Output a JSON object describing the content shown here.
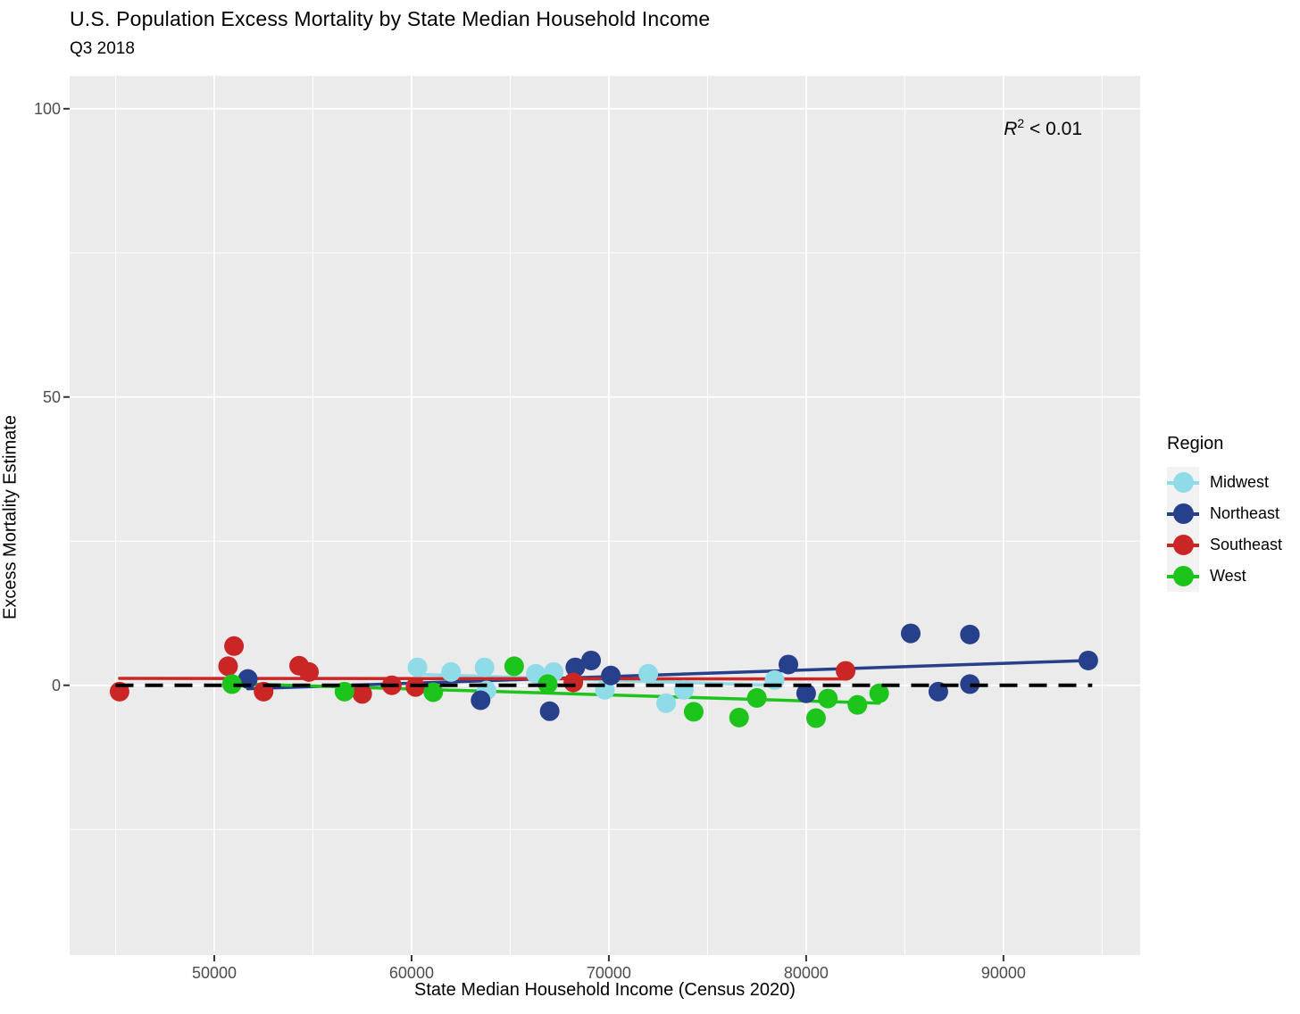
{
  "chart": {
    "title": "U.S. Population Excess Mortality by State Median Household Income",
    "subtitle": "Q3 2018",
    "xlabel": "State Median Household Income (Census 2020)",
    "ylabel": "Excess Mortality Estimate",
    "annotation": {
      "r": "R",
      "exponent": "2",
      "comparison": " < 0.01"
    }
  },
  "legend": {
    "title": "Region",
    "entries": [
      {
        "label": "Midwest",
        "color": "#8FDCE8"
      },
      {
        "label": "Northeast",
        "color": "#27408B"
      },
      {
        "label": "Southeast",
        "color": "#CB2626"
      },
      {
        "label": "West",
        "color": "#1CC41C"
      }
    ]
  },
  "chart_data": {
    "type": "scatter",
    "title": "U.S. Population Excess Mortality by State Median Household Income",
    "subtitle": "Q3 2018",
    "xlabel": "State Median Household Income (Census 2020)",
    "ylabel": "Excess Mortality Estimate",
    "xlim": [
      42670,
      96930
    ],
    "ylim": [
      -46.8,
      105.7
    ],
    "x_major_ticks": [
      {
        "v": 50000,
        "label": "50000"
      },
      {
        "v": 60000,
        "label": "60000"
      },
      {
        "v": 70000,
        "label": "70000"
      },
      {
        "v": 80000,
        "label": "80000"
      },
      {
        "v": 90000,
        "label": "90000"
      }
    ],
    "x_minor_ticks": [
      45000,
      55000,
      65000,
      75000,
      85000,
      95000
    ],
    "y_major_ticks": [
      {
        "v": 0,
        "label": "0"
      },
      {
        "v": 50,
        "label": "50"
      },
      {
        "v": 100,
        "label": "100"
      }
    ],
    "y_minor_ticks": [
      -25,
      25,
      75
    ],
    "grid": true,
    "legend_position": "right",
    "panel_color": "#EBEBEB",
    "grid_color": "#FFFFFF",
    "reference_line": {
      "y": 0,
      "x_start": 45000,
      "x_end": 94500,
      "color": "#000000",
      "style": "dashed"
    },
    "annotation_text": "R2 < 0.01",
    "series": [
      {
        "name": "Midwest",
        "color": "#8FDCE8",
        "points": [
          [
            60300,
            3.1
          ],
          [
            62000,
            2.3
          ],
          [
            63700,
            3.1
          ],
          [
            63800,
            -0.9
          ],
          [
            66300,
            2.0
          ],
          [
            67200,
            2.3
          ],
          [
            69800,
            -0.8
          ],
          [
            72000,
            2.0
          ],
          [
            72900,
            -3.1
          ],
          [
            73800,
            -0.8
          ],
          [
            78400,
            0.9
          ]
        ],
        "trend": {
          "x1": 60300,
          "y1": 1.9,
          "x2": 78400,
          "y2": 0.0
        }
      },
      {
        "name": "Northeast",
        "color": "#27408B",
        "points": [
          [
            51700,
            1.1
          ],
          [
            63500,
            -2.6
          ],
          [
            67000,
            -4.5
          ],
          [
            68300,
            3.1
          ],
          [
            69100,
            4.3
          ],
          [
            70100,
            1.7
          ],
          [
            79100,
            3.6
          ],
          [
            80000,
            -1.4
          ],
          [
            85300,
            9.0
          ],
          [
            86700,
            -1.1
          ],
          [
            88300,
            8.8
          ],
          [
            88300,
            0.2
          ],
          [
            94300,
            4.3
          ]
        ],
        "trend": {
          "x1": 51700,
          "y1": -0.6,
          "x2": 94300,
          "y2": 4.3
        }
      },
      {
        "name": "Southeast",
        "color": "#CB2626",
        "points": [
          [
            45200,
            -1.1
          ],
          [
            50700,
            3.3
          ],
          [
            51000,
            6.8
          ],
          [
            52500,
            -1.1
          ],
          [
            54300,
            3.4
          ],
          [
            54800,
            2.3
          ],
          [
            57500,
            -1.5
          ],
          [
            59000,
            0.0
          ],
          [
            60200,
            -0.3
          ],
          [
            68200,
            0.5
          ],
          [
            82000,
            2.5
          ]
        ],
        "trend": {
          "x1": 45200,
          "y1": 1.2,
          "x2": 82000,
          "y2": 1.1
        }
      },
      {
        "name": "West",
        "color": "#1CC41C",
        "points": [
          [
            50900,
            0.2
          ],
          [
            56600,
            -1.1
          ],
          [
            61100,
            -1.2
          ],
          [
            65200,
            3.3
          ],
          [
            66900,
            0.2
          ],
          [
            74300,
            -4.6
          ],
          [
            76600,
            -5.6
          ],
          [
            77500,
            -2.2
          ],
          [
            80500,
            -5.7
          ],
          [
            81100,
            -2.3
          ],
          [
            82600,
            -3.4
          ],
          [
            83700,
            -1.4
          ]
        ],
        "trend": {
          "x1": 50900,
          "y1": 0.3,
          "x2": 83700,
          "y2": -3.1
        }
      }
    ]
  }
}
